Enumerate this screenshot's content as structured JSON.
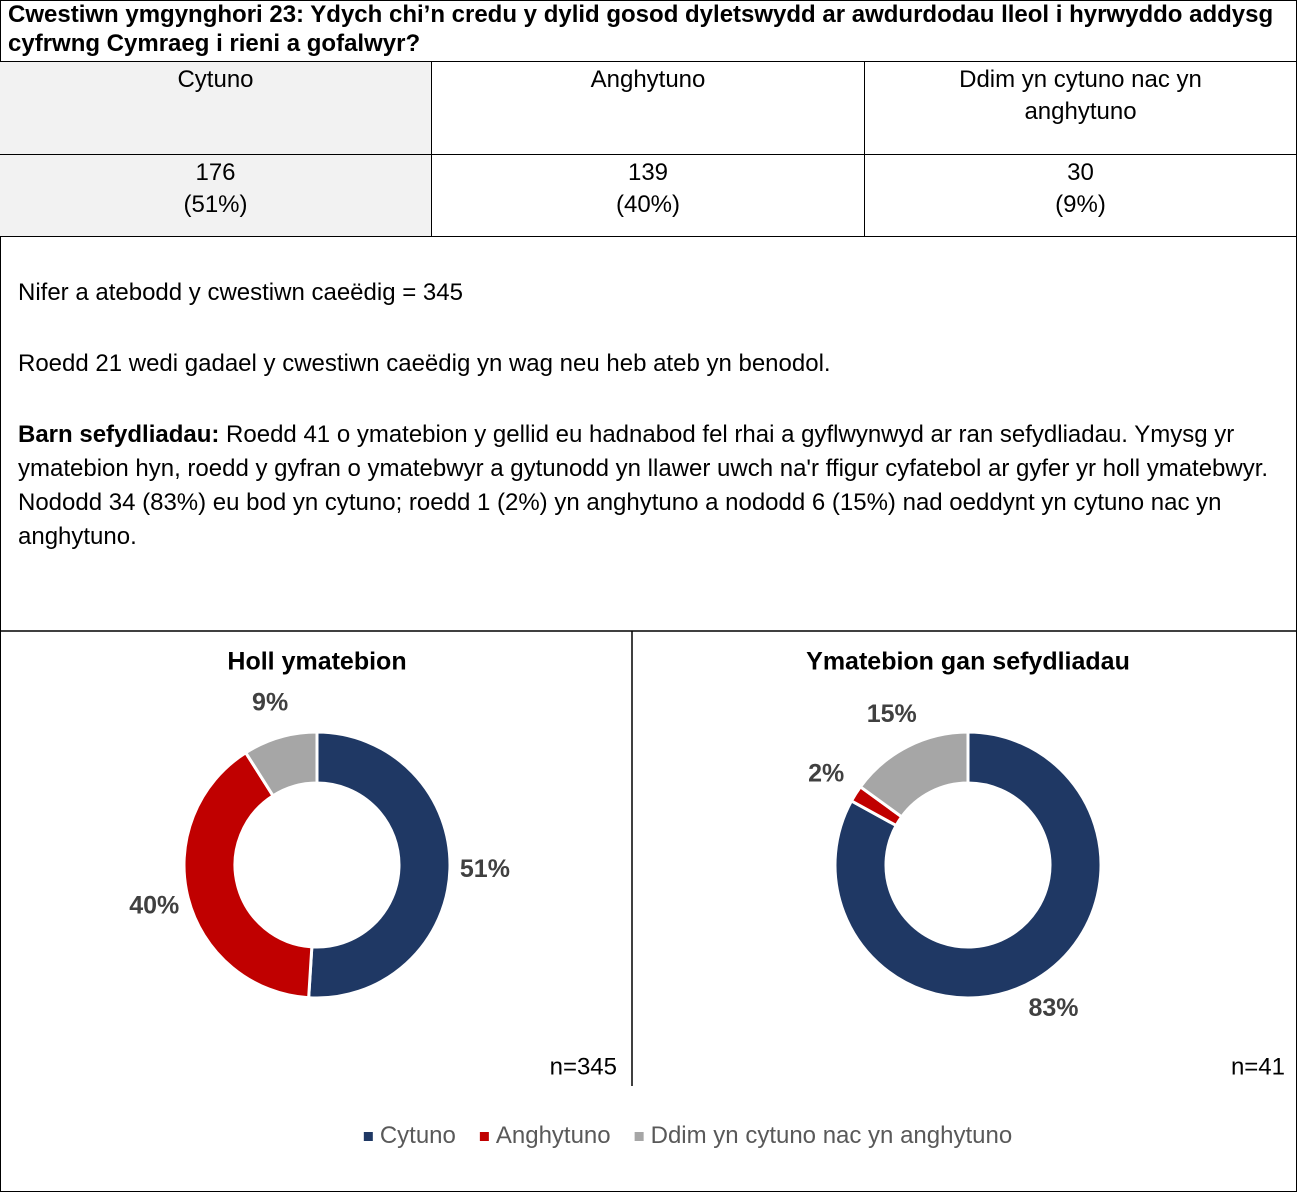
{
  "title": "Cwestiwn ymgynghori 23: Ydych chi’n credu y dylid gosod dyletswydd ar awdurdodau lleol i hyrwyddo addysg cyfrwng Cymraeg i rieni a gofalwyr?",
  "table": {
    "header": [
      "Cytuno",
      "Anghytuno",
      "Ddim yn cytuno nac yn anghytuno"
    ],
    "rows": [
      [
        "176",
        "139",
        "30"
      ],
      [
        "(51%)",
        "(40%)",
        "(9%)"
      ]
    ]
  },
  "paragraphs": [
    {
      "text": "Nifer a atebodd y cwestiwn caeëdig = 345"
    },
    {
      "text": "Roedd 21 wedi gadael y cwestiwn caeëdig yn wag neu heb ateb yn benodol."
    },
    {
      "bold": "Barn sefydliadau:",
      "text": " Roedd 41 o ymatebion y gellid eu hadnabod fel rhai a gyflwynwyd ar ran sefydliadau. Ymysg yr ymatebion hyn, roedd y gyfran o ymatebwyr a gytunodd yn llawer uwch na'r ffigur cyfatebol ar gyfer yr holl ymatebwyr. Nododd 34 (83%) eu bod yn cytuno; roedd 1 (2%) yn anghytuno a nododd 6 (15%) nad oeddynt yn cytuno nac yn anghytuno."
    }
  ],
  "chart_data": [
    {
      "type": "donut",
      "title": "Holl ymatebion",
      "values": [
        51,
        40,
        9
      ],
      "value_labels": [
        "51%",
        "40%",
        "9%"
      ],
      "colors": [
        "#1f3864",
        "#c00000",
        "#a6a6a6"
      ],
      "note": "n=345"
    },
    {
      "type": "donut",
      "title": "Ymatebion gan sefydliadau",
      "values": [
        83,
        2,
        15
      ],
      "value_labels": [
        "83%",
        "2%",
        "15%"
      ],
      "colors": [
        "#1f3864",
        "#c00000",
        "#a6a6a6"
      ],
      "note": "n=41"
    }
  ],
  "legend": {
    "items": [
      {
        "name": "Cytuno",
        "color": "#1f3864"
      },
      {
        "name": "Anghytuno",
        "color": "#c00000"
      },
      {
        "name": "Ddim yn cytuno nac yn anghytuno",
        "color": "#a6a6a6"
      }
    ]
  }
}
